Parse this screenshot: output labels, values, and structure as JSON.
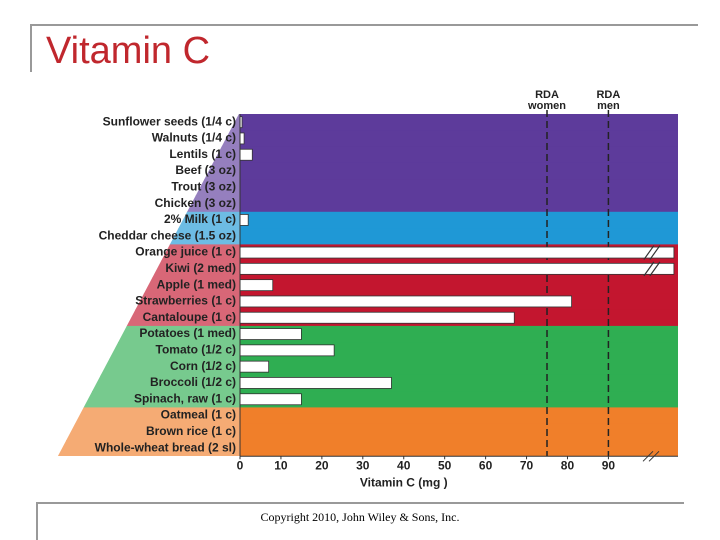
{
  "slide_title": "Vitamin C",
  "copyright": "Copyright 2010, John Wiley & Sons, Inc.",
  "chart_data": {
    "type": "hbar",
    "categories": [
      "Sunflower seeds (1/4 c)",
      "Walnuts (1/4 c)",
      "Lentils (1 c)",
      "Beef (3 oz)",
      "Trout (3 oz)",
      "Chicken (3 oz)",
      "2% Milk (1 c)",
      "Cheddar cheese (1.5 oz)",
      "Orange juice (1 c)",
      "Kiwi (2 med)",
      "Apple (1 med)",
      "Strawberries (1 c)",
      "Cantaloupe (1 c)",
      "Potatoes (1 med)",
      "Tomato (1/2 c)",
      "Corn (1/2 c)",
      "Broccoli (1/2 c)",
      "Spinach, raw (1 c)",
      "Oatmeal (1 c)",
      "Brown rice (1 c)",
      "Whole-wheat bread (2 sl)"
    ],
    "values": [
      0.5,
      1,
      3,
      0,
      0,
      0,
      2,
      0,
      106,
      106,
      8,
      81,
      67,
      15,
      23,
      7,
      37,
      15,
      0,
      0,
      0
    ],
    "row_colors": [
      "#5d3b9b",
      "#5d3b9b",
      "#5d3b9b",
      "#5d3b9b",
      "#5d3b9b",
      "#5d3b9b",
      "#1f98d6",
      "#1f98d6",
      "#c3162f",
      "#c3162f",
      "#c3162f",
      "#c3162f",
      "#c3162f",
      "#2fae52",
      "#2fae52",
      "#2fae52",
      "#2fae52",
      "#2fae52",
      "#f07f2a",
      "#f07f2a",
      "#f07f2a"
    ],
    "bar_color": "#ffffff",
    "xlabel": "Vitamin C (mg )",
    "xlim": [
      0,
      107
    ],
    "xticks": [
      0,
      10,
      20,
      30,
      40,
      50,
      60,
      70,
      80,
      90
    ],
    "axis_break": true,
    "reference_lines": [
      {
        "value": 75,
        "label": "RDA women"
      },
      {
        "value": 90,
        "label": "RDA men"
      }
    ]
  }
}
